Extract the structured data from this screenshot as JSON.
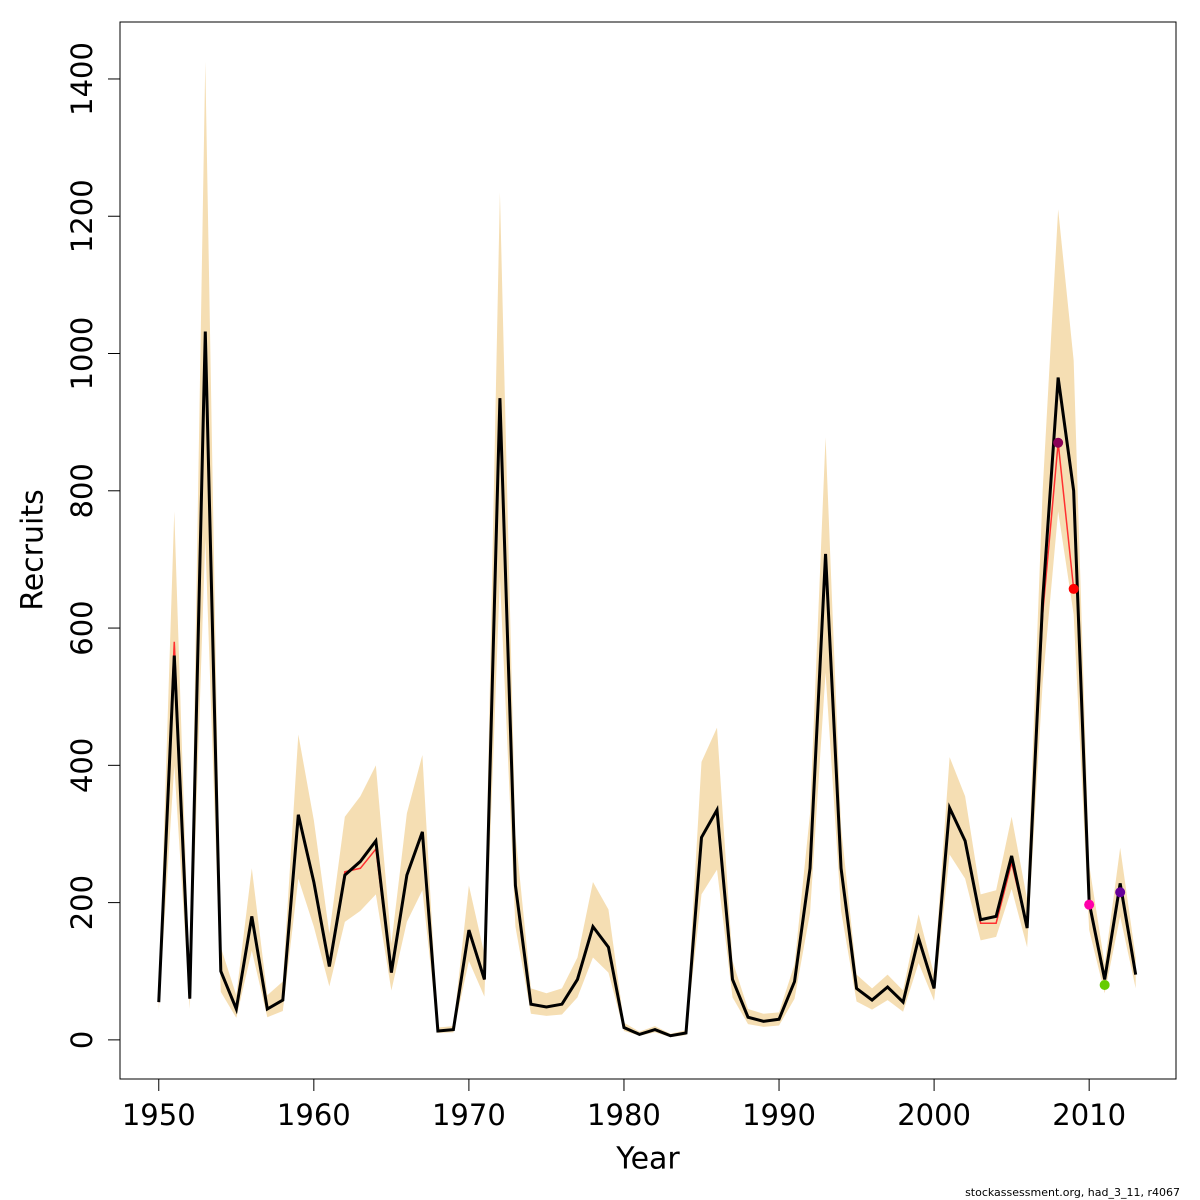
{
  "chart_data": {
    "type": "line",
    "xlabel": "Year",
    "ylabel": "Recruits",
    "footnote": "stockassessment.org, had_3_11, r4067",
    "xlim": [
      1947.5,
      2015.6
    ],
    "ylim": [
      -57,
      1483
    ],
    "xticks": [
      1950,
      1960,
      1970,
      1980,
      1990,
      2000,
      2010
    ],
    "yticks": [
      0,
      200,
      400,
      600,
      800,
      1000,
      1200,
      1400
    ],
    "x": [
      1950,
      1951,
      1952,
      1953,
      1954,
      1955,
      1956,
      1957,
      1958,
      1959,
      1960,
      1961,
      1962,
      1963,
      1964,
      1965,
      1966,
      1967,
      1968,
      1969,
      1970,
      1971,
      1972,
      1973,
      1974,
      1975,
      1976,
      1977,
      1978,
      1979,
      1980,
      1981,
      1982,
      1983,
      1984,
      1985,
      1986,
      1987,
      1988,
      1989,
      1990,
      1991,
      1992,
      1993,
      1994,
      1995,
      1996,
      1997,
      1998,
      1999,
      2000,
      2001,
      2002,
      2003,
      2004,
      2005,
      2006,
      2007,
      2008,
      2009,
      2010,
      2011,
      2012,
      2013
    ],
    "band": {
      "color": "#f5deb3",
      "upper": [
        65,
        770,
        75,
        1425,
        135,
        65,
        250,
        65,
        85,
        445,
        320,
        155,
        325,
        355,
        400,
        140,
        330,
        415,
        18,
        20,
        225,
        125,
        1235,
        300,
        75,
        68,
        75,
        120,
        230,
        190,
        25,
        12,
        20,
        9,
        14,
        405,
        455,
        115,
        45,
        38,
        40,
        110,
        330,
        878,
        310,
        95,
        75,
        95,
        72,
        183,
        95,
        412,
        355,
        212,
        218,
        325,
        205,
        800,
        1210,
        990,
        255,
        110,
        280,
        120
      ],
      "lower": [
        42,
        400,
        45,
        730,
        70,
        32,
        130,
        33,
        42,
        235,
        165,
        78,
        172,
        188,
        212,
        72,
        172,
        218,
        10,
        11,
        115,
        63,
        675,
        165,
        38,
        35,
        37,
        62,
        120,
        98,
        13,
        6,
        11,
        4,
        7,
        212,
        248,
        62,
        23,
        19,
        21,
        60,
        185,
        535,
        188,
        56,
        44,
        58,
        41,
        112,
        57,
        270,
        235,
        145,
        150,
        220,
        135,
        520,
        770,
        620,
        160,
        68,
        180,
        75
      ]
    },
    "series": [
      {
        "color": "#ff3030",
        "values": [
          55,
          580,
          60,
          1032,
          100,
          45,
          180,
          45,
          58,
          328,
          230,
          107,
          245,
          250,
          278,
          98,
          240,
          303,
          13,
          15,
          160,
          88,
          935,
          225,
          52,
          48,
          52,
          88,
          165,
          135,
          18,
          8,
          15,
          6,
          10,
          295,
          335,
          88,
          33,
          27,
          30,
          85,
          250,
          708,
          250,
          75,
          58,
          77,
          55,
          148,
          75,
          338,
          290,
          170,
          170,
          258,
          163,
          620,
          870,
          657,
          null,
          null,
          null,
          null
        ]
      },
      {
        "color": "#000000",
        "values": [
          55,
          560,
          60,
          1032,
          100,
          45,
          180,
          45,
          58,
          328,
          230,
          107,
          240,
          260,
          290,
          98,
          240,
          303,
          13,
          15,
          160,
          88,
          935,
          225,
          52,
          48,
          52,
          88,
          165,
          135,
          18,
          8,
          15,
          6,
          10,
          295,
          335,
          88,
          33,
          27,
          30,
          85,
          250,
          708,
          250,
          75,
          58,
          77,
          55,
          148,
          75,
          338,
          290,
          175,
          180,
          268,
          163,
          640,
          965,
          800,
          200,
          88,
          228,
          95
        ]
      }
    ],
    "points": [
      {
        "x": 2008,
        "y": 870,
        "color": "#8b0057"
      },
      {
        "x": 2009,
        "y": 657,
        "color": "#ff0000"
      },
      {
        "x": 2010,
        "y": 197,
        "color": "#ff00aa"
      },
      {
        "x": 2011,
        "y": 80,
        "color": "#66cc00"
      },
      {
        "x": 2012,
        "y": 215,
        "color": "#660099"
      }
    ]
  }
}
